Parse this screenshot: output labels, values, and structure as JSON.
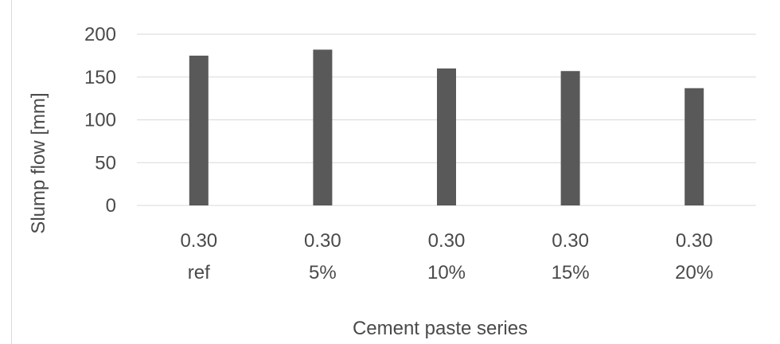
{
  "chart_data": {
    "type": "bar",
    "title": "",
    "xlabel": "Cement paste series",
    "ylabel": "Slump flow [mm]",
    "ylim": [
      0,
      200
    ],
    "yticks": [
      "0",
      "50",
      "100",
      "150",
      "200"
    ],
    "grid": true,
    "legend": "none",
    "categories": [
      [
        "0.30",
        "ref"
      ],
      [
        "0.30",
        "5%"
      ],
      [
        "0.30",
        "10%"
      ],
      [
        "0.30",
        "15%"
      ],
      [
        "0.30",
        "20%"
      ]
    ],
    "values": [
      175,
      182,
      160,
      157,
      137
    ],
    "colors": {
      "bar": "#595959",
      "grid": "#d9d9d9",
      "text": "#4a4a4a"
    }
  }
}
